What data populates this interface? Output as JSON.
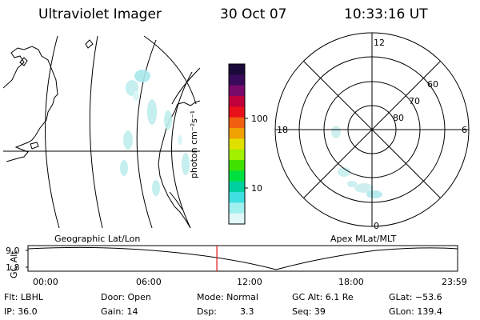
{
  "header": {
    "title": "Ultraviolet Imager",
    "date": "30 Oct 07",
    "time": "10:33:16 UT"
  },
  "colorbar": {
    "unit_label": "photon cm⁻²s⁻¹",
    "ticks": [
      "100",
      "10"
    ],
    "colors": [
      "#1a0a3a",
      "#3a0a5a",
      "#7a0a6a",
      "#c0003a",
      "#e8101a",
      "#f06010",
      "#f0a000",
      "#e0e000",
      "#a0f000",
      "#40e000",
      "#00e040",
      "#00d0a0",
      "#40e0e0",
      "#a0f0f0",
      "#e0f8f8"
    ]
  },
  "geo_map": {
    "label": "Geographic Lat/Lon"
  },
  "polar": {
    "label": "Apex MLat/MLT",
    "mlt_labels": [
      "12",
      "18",
      "6",
      "0"
    ],
    "lat_labels": [
      "60",
      "70",
      "80"
    ]
  },
  "timeline": {
    "ylabel": "GC Alt",
    "yticks": [
      "9.0",
      "1.8"
    ],
    "xticks": [
      "00:00",
      "06:00",
      "12:00",
      "18:00",
      "23:59"
    ],
    "marker_time_hours": 10.55
  },
  "info": {
    "filt": "Flt: LBHL",
    "ip": "IP: 36.0",
    "door": "Door: Open",
    "gain": "Gain: 14",
    "mode": "Mode: Normal",
    "dsp_label": "Dsp:",
    "dsp_value": "3.3",
    "gcalt": "GC Alt: 6.1 Re",
    "seq": "Seq: 39",
    "glat": "GLat: −53.6",
    "glon": "GLon: 139.4"
  }
}
